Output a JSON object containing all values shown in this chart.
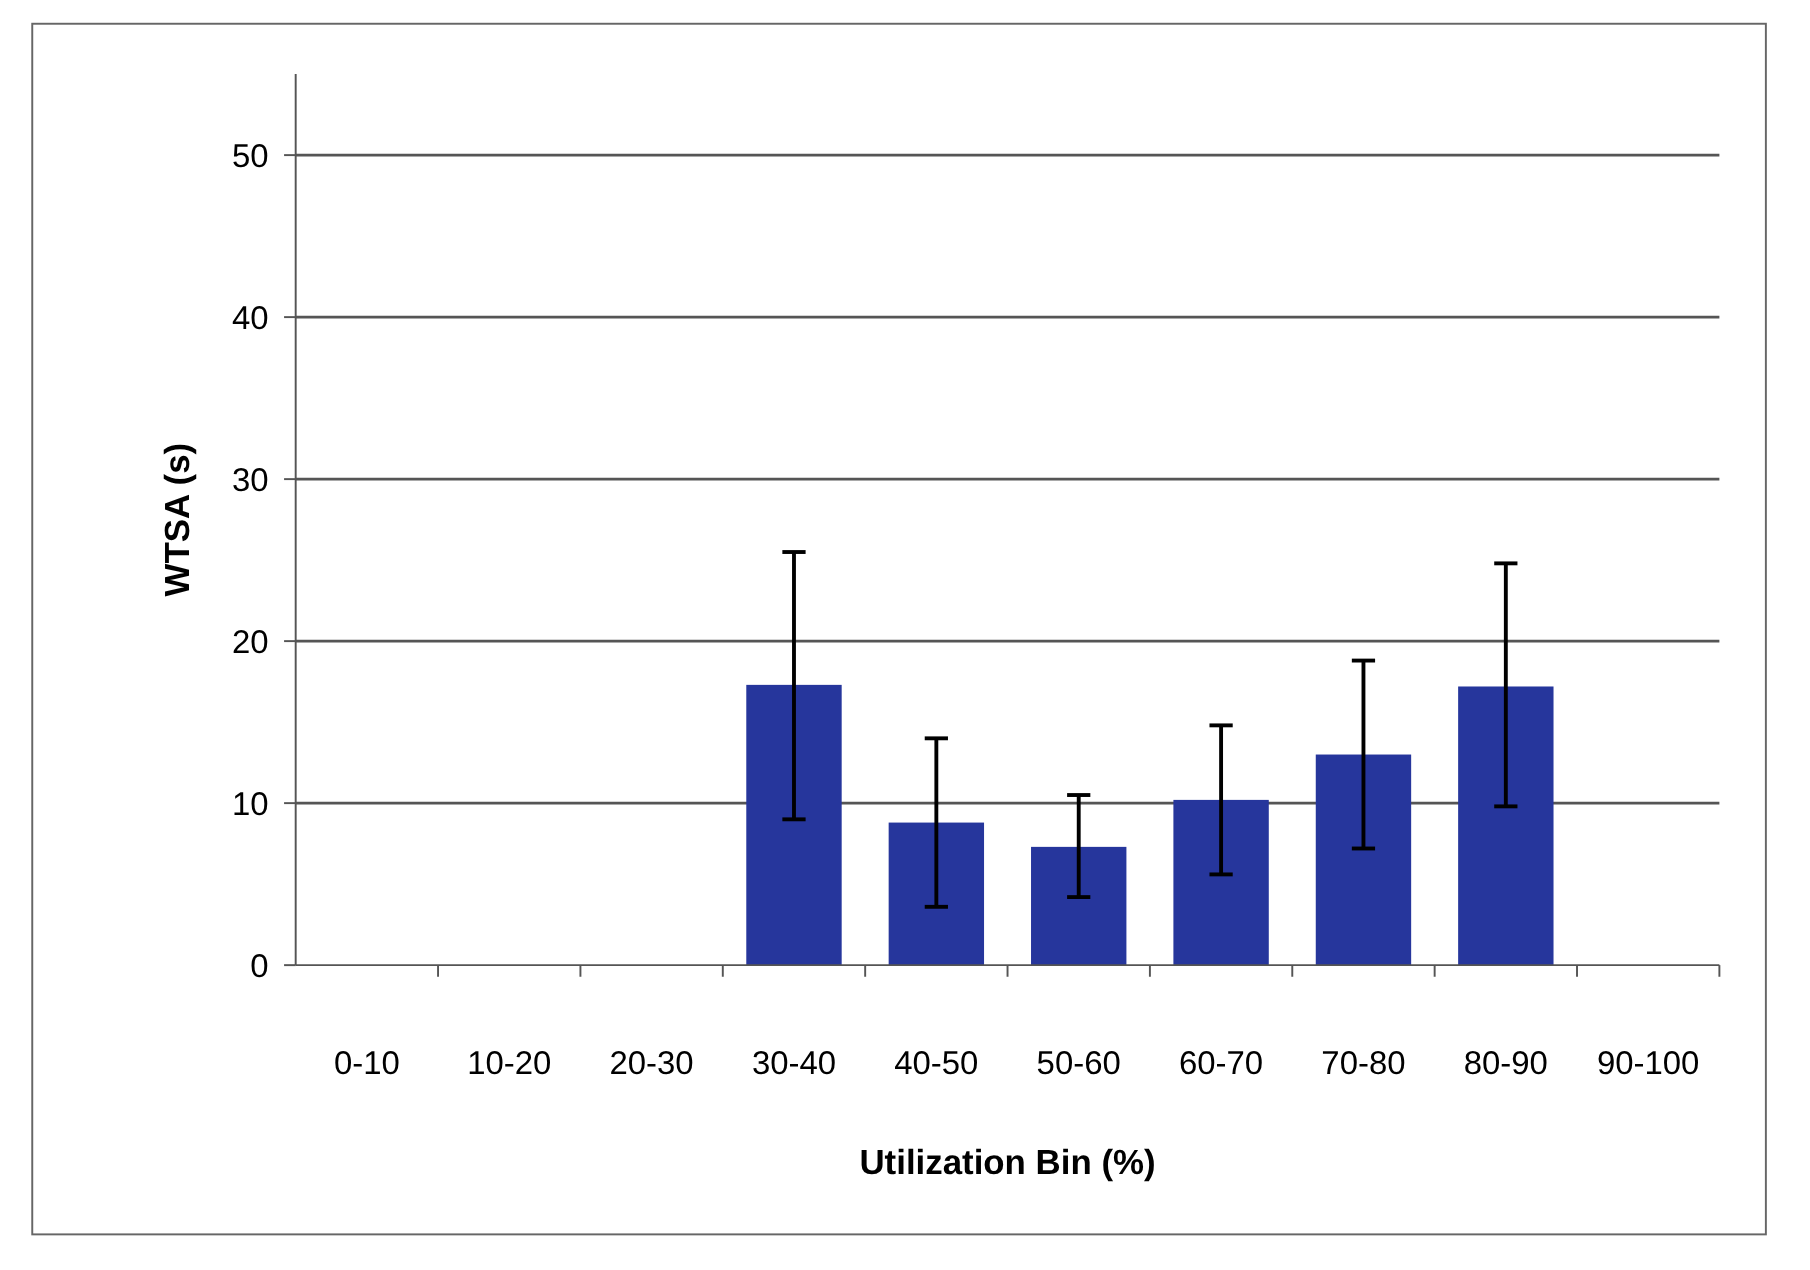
{
  "chart_data": {
    "type": "bar",
    "xlabel": "Utilization Bin (%)",
    "ylabel": "WTSA (s)",
    "categories": [
      "0-10",
      "10-20",
      "20-30",
      "30-40",
      "40-50",
      "50-60",
      "60-70",
      "70-80",
      "80-90",
      "90-100"
    ],
    "values": [
      null,
      null,
      null,
      17.3,
      8.8,
      7.3,
      10.2,
      13,
      17.2,
      null
    ],
    "errors": [
      null,
      null,
      null,
      [
        9,
        25.5
      ],
      [
        3.6,
        14
      ],
      [
        4.2,
        10.5
      ],
      [
        5.6,
        14.8
      ],
      [
        7.2,
        18.8
      ],
      [
        9.8,
        24.8
      ],
      null
    ],
    "color": "#26369c",
    "ylim": [
      0,
      55
    ],
    "yticks": [
      0,
      10,
      20,
      30,
      40,
      50
    ],
    "grid": "y"
  }
}
